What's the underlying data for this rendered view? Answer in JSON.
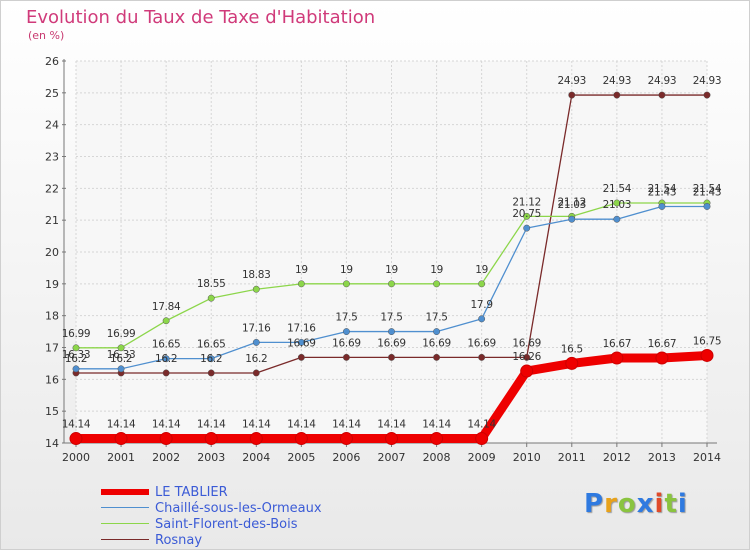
{
  "title": "Evolution du Taux de Taxe d'Habitation",
  "subtitle": "(en %)",
  "logo": "Proxiti",
  "logo_colors": [
    "#2f7ae0",
    "#e8a21a",
    "#8ac43f",
    "#2f7ae0",
    "#e04a2a",
    "#8ac43f",
    "#2f7ae0"
  ],
  "chart_data": {
    "type": "line",
    "x": [
      "2000",
      "2001",
      "2002",
      "2003",
      "2004",
      "2005",
      "2006",
      "2007",
      "2008",
      "2009",
      "2010",
      "2011",
      "2012",
      "2013",
      "2014"
    ],
    "ylim": [
      14,
      26
    ],
    "yticks": [
      "14",
      "15",
      "16",
      "17",
      "18",
      "19",
      "20",
      "21",
      "22",
      "23",
      "24",
      "25",
      "26"
    ],
    "grid": true,
    "legend_position": "bottom-left",
    "series": [
      {
        "name": "LE TABLIER",
        "color": "#ee0000",
        "values": [
          14.14,
          14.14,
          14.14,
          14.14,
          14.14,
          14.14,
          14.14,
          14.14,
          14.14,
          14.14,
          16.26,
          16.5,
          16.67,
          16.67,
          16.75
        ],
        "labels": [
          "14.14",
          "14.14",
          "14.14",
          "14.14",
          "14.14",
          "14.14",
          "14.14",
          "14.14",
          "14.14",
          "14.14",
          "16.26",
          "16.5",
          "16.67",
          "16.67",
          "16.75"
        ]
      },
      {
        "name": "Chaillé-sous-les-Ormeaux",
        "color": "#4f8fcf",
        "values": [
          16.33,
          16.33,
          16.65,
          16.65,
          17.16,
          17.16,
          17.5,
          17.5,
          17.5,
          17.9,
          20.75,
          21.03,
          21.03,
          21.43,
          21.43
        ],
        "labels": [
          "16.33",
          "16.33",
          "16.65",
          "16.65",
          "17.16",
          "17.16",
          "17.5",
          "17.5",
          "17.5",
          "17.9",
          "20.75",
          "21.03",
          "21.03",
          "21.43",
          "21.43"
        ]
      },
      {
        "name": "Saint-Florent-des-Bois",
        "color": "#8cd64a",
        "values": [
          16.99,
          16.99,
          17.84,
          18.55,
          18.83,
          19,
          19,
          19,
          19,
          19,
          21.12,
          21.12,
          21.54,
          21.54,
          21.54
        ],
        "labels": [
          "16.99",
          "16.99",
          "17.84",
          "18.55",
          "18.83",
          "19",
          "19",
          "19",
          "19",
          "19",
          "21.12",
          "21.12",
          "21.54",
          "21.54",
          "21.54"
        ]
      },
      {
        "name": "Rosnay",
        "color": "#7a2a2a",
        "values": [
          16.2,
          16.2,
          16.2,
          16.2,
          16.2,
          16.69,
          16.69,
          16.69,
          16.69,
          16.69,
          16.69,
          24.93,
          24.93,
          24.93,
          24.93
        ],
        "labels": [
          "16.2",
          "16.2",
          "16.2",
          "16.2",
          "16.2",
          "16.69",
          "16.69",
          "16.69",
          "16.69",
          "16.69",
          "16.69",
          "24.93",
          "24.93",
          "24.93",
          "24.93"
        ]
      }
    ]
  }
}
